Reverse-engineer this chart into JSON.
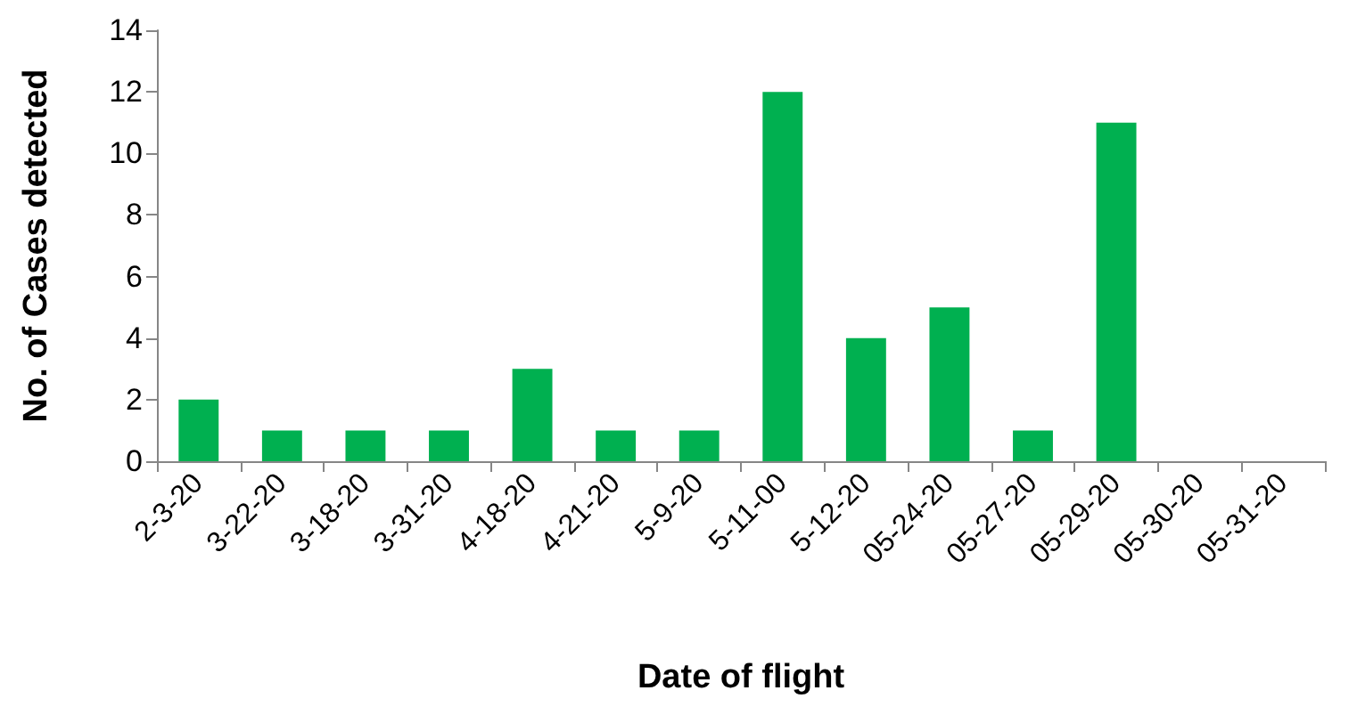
{
  "chart_data": {
    "type": "bar",
    "xlabel": "Date of flight",
    "ylabel": "No. of Cases detected",
    "categories": [
      "2-3-20",
      "3-22-20",
      "3-18-20",
      "3-31-20",
      "4-18-20",
      "4-21-20",
      "5-9-20",
      "5-11-00",
      "5-12-20",
      "05-24-20",
      "05-27-20",
      "05-29-20",
      "05-30-20",
      "05-31-20"
    ],
    "values": [
      2,
      1,
      1,
      1,
      3,
      1,
      1,
      12,
      4,
      5,
      1,
      11,
      0,
      0
    ],
    "color": "#00b050",
    "ylim": [
      0,
      14
    ],
    "yticks": [
      0,
      2,
      4,
      6,
      8,
      10,
      12,
      14
    ],
    "grid": false
  }
}
